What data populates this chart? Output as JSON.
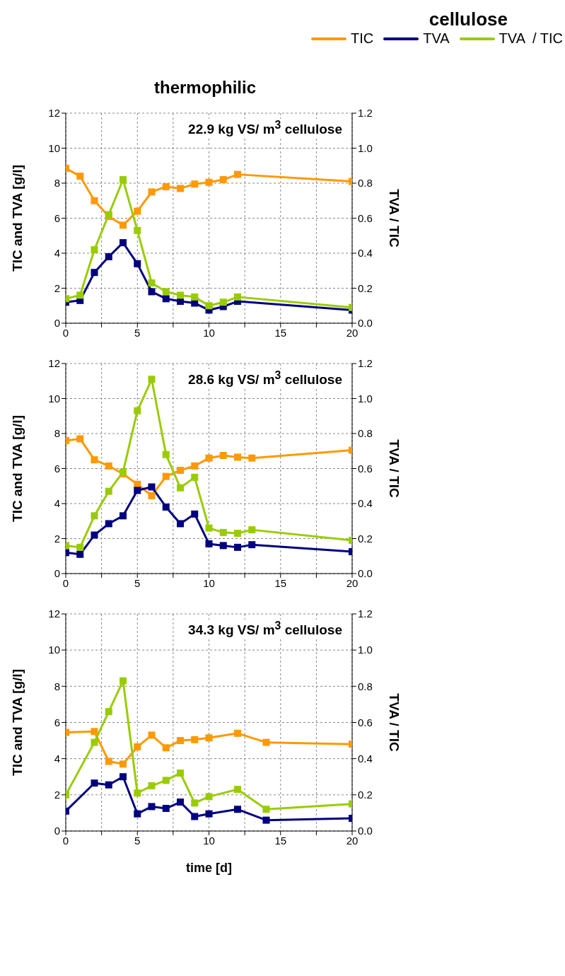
{
  "chart_data": [
    {
      "type": "line",
      "legend_title": "cellulose",
      "title": "thermophilic",
      "ylabel": "TIC and TVA [g/l]",
      "y2label": "TVA / TIC",
      "annotations": [
        "22.9 kg VS/ m$^{3}$ cellulose"
      ],
      "xlim": [
        0,
        20
      ],
      "xticks": [
        0,
        {
          "value": 2.5,
          "label": null
        },
        5,
        {
          "value": 7.5,
          "label": null
        },
        10,
        {
          "value": 12.5,
          "label": null
        },
        15,
        {
          "value": 17.5,
          "label": null
        },
        20
      ],
      "ylim": [
        0,
        12
      ],
      "yticks": [
        0,
        2,
        4,
        6,
        8,
        10,
        12
      ],
      "y2lim": [
        0,
        1.2
      ],
      "y2ticks": [
        {
          "value": 0,
          "label": "0.0"
        },
        {
          "value": 0.2,
          "label": "0.2"
        },
        {
          "value": 0.4,
          "label": "0.4"
        },
        {
          "value": 0.6,
          "label": "0.6"
        },
        {
          "value": 0.8,
          "label": "0.8"
        },
        {
          "value": 1,
          "label": "1.0"
        },
        {
          "value": 1.2,
          "label": "1.2"
        }
      ],
      "grid": true,
      "legend": "top right",
      "marker": "square",
      "line_style": "solid",
      "series": [
        {
          "name": "TIC",
          "color": "#ff9900",
          "x": [
            0,
            1,
            2,
            3,
            4,
            5,
            6,
            7,
            8,
            9,
            10,
            11,
            12,
            20
          ],
          "values": [
            8.85,
            8.4,
            7.0,
            6.1,
            5.6,
            6.4,
            7.5,
            7.8,
            7.7,
            7.95,
            8.05,
            8.2,
            8.5,
            8.1
          ]
        },
        {
          "name": "TVA",
          "color": "#000080",
          "x": [
            0,
            1,
            2,
            3,
            4,
            5,
            6,
            7,
            8,
            9,
            10,
            11,
            12,
            20
          ],
          "values": [
            1.2,
            1.3,
            2.9,
            3.8,
            4.6,
            3.4,
            1.8,
            1.4,
            1.25,
            1.15,
            0.75,
            0.95,
            1.25,
            0.75
          ]
        },
        {
          "name": "TVA  / TIC",
          "color": "#99cc00",
          "axis": "y2",
          "x": [
            0,
            1,
            2,
            3,
            4,
            5,
            6,
            7,
            8,
            9,
            10,
            11,
            12,
            20
          ],
          "values": [
            0.14,
            0.16,
            0.42,
            0.62,
            0.82,
            0.53,
            0.23,
            0.18,
            0.16,
            0.15,
            0.1,
            0.12,
            0.15,
            0.09
          ]
        }
      ]
    },
    {
      "type": "line",
      "ylabel": "TIC and TVA [g/l]",
      "y2label": "TVA / TIC",
      "annotations": [
        "28.6 kg VS/ m$^{3}$ cellulose"
      ],
      "xlim": [
        0,
        20
      ],
      "xticks": [
        0,
        {
          "value": 2.5,
          "label": null
        },
        5,
        {
          "value": 7.5,
          "label": null
        },
        10,
        {
          "value": 12.5,
          "label": null
        },
        15,
        {
          "value": 17.5,
          "label": null
        },
        20
      ],
      "ylim": [
        0,
        12
      ],
      "yticks": [
        0,
        2,
        4,
        6,
        8,
        10,
        12
      ],
      "y2lim": [
        0,
        1.2
      ],
      "y2ticks": [
        {
          "value": 0,
          "label": "0.0"
        },
        {
          "value": 0.2,
          "label": "0.2"
        },
        {
          "value": 0.4,
          "label": "0.4"
        },
        {
          "value": 0.6,
          "label": "0.6"
        },
        {
          "value": 0.8,
          "label": "0.8"
        },
        {
          "value": 1,
          "label": "1.0"
        },
        {
          "value": 1.2,
          "label": "1.2"
        }
      ],
      "grid": true,
      "marker": "square",
      "line_style": "solid",
      "series": [
        {
          "color": "#ff9900",
          "x": [
            0,
            1,
            2,
            3,
            4,
            5,
            6,
            7,
            8,
            9,
            10,
            11,
            12,
            13,
            20
          ],
          "values": [
            7.6,
            7.7,
            6.5,
            6.15,
            5.7,
            5.1,
            4.45,
            5.55,
            5.9,
            6.15,
            6.6,
            6.75,
            6.65,
            6.6,
            7.05
          ]
        },
        {
          "color": "#000080",
          "x": [
            0,
            1,
            2,
            3,
            4,
            5,
            6,
            7,
            8,
            9,
            10,
            11,
            12,
            13,
            20
          ],
          "values": [
            1.2,
            1.1,
            2.2,
            2.85,
            3.3,
            4.75,
            4.95,
            3.8,
            2.85,
            3.4,
            1.7,
            1.6,
            1.5,
            1.65,
            1.25
          ]
        },
        {
          "color": "#99cc00",
          "axis": "y2",
          "x": [
            0,
            1,
            2,
            3,
            4,
            5,
            6,
            7,
            8,
            9,
            10,
            11,
            12,
            13,
            20
          ],
          "values": [
            0.16,
            0.15,
            0.33,
            0.47,
            0.58,
            0.93,
            1.11,
            0.68,
            0.49,
            0.55,
            0.26,
            0.235,
            0.23,
            0.25,
            0.19
          ]
        }
      ]
    },
    {
      "type": "line",
      "xlabel": "time [d]",
      "ylabel": "TIC and TVA [g/l]",
      "y2label": "TVA / TIC",
      "annotations": [
        "34.3 kg VS/ m$^{3}$ cellulose"
      ],
      "xlim": [
        0,
        20
      ],
      "xticks": [
        0,
        {
          "value": 2.5,
          "label": null
        },
        5,
        {
          "value": 7.5,
          "label": null
        },
        10,
        {
          "value": 12.5,
          "label": null
        },
        15,
        {
          "value": 17.5,
          "label": null
        },
        20
      ],
      "ylim": [
        0,
        12
      ],
      "yticks": [
        0,
        2,
        4,
        6,
        8,
        10,
        12
      ],
      "y2lim": [
        0,
        1.2
      ],
      "y2ticks": [
        {
          "value": 0,
          "label": "0.0"
        },
        {
          "value": 0.2,
          "label": "0.2"
        },
        {
          "value": 0.4,
          "label": "0.4"
        },
        {
          "value": 0.6,
          "label": "0.6"
        },
        {
          "value": 0.8,
          "label": "0.8"
        },
        {
          "value": 1,
          "label": "1.0"
        },
        {
          "value": 1.2,
          "label": "1.2"
        }
      ],
      "grid": true,
      "marker": "square",
      "line_style": "solid",
      "series": [
        {
          "color": "#ff9900",
          "x": [
            0,
            2,
            3,
            4,
            5,
            6,
            7,
            8,
            9,
            10,
            12,
            14,
            20
          ],
          "values": [
            5.45,
            5.5,
            3.85,
            3.7,
            4.65,
            5.3,
            4.6,
            5.0,
            5.05,
            5.15,
            5.4,
            4.9,
            4.8
          ]
        },
        {
          "color": "#000080",
          "x": [
            0,
            2,
            3,
            4,
            5,
            6,
            7,
            8,
            9,
            10,
            12,
            14,
            20
          ],
          "values": [
            1.1,
            2.65,
            2.55,
            3.0,
            0.95,
            1.35,
            1.25,
            1.6,
            0.8,
            0.95,
            1.2,
            0.6,
            0.7
          ]
        },
        {
          "color": "#99cc00",
          "axis": "y2",
          "x": [
            0,
            2,
            3,
            4,
            5,
            6,
            7,
            8,
            9,
            10,
            12,
            14,
            20
          ],
          "values": [
            0.2,
            0.49,
            0.66,
            0.83,
            0.21,
            0.25,
            0.28,
            0.32,
            0.155,
            0.19,
            0.23,
            0.12,
            0.15
          ]
        }
      ]
    }
  ]
}
